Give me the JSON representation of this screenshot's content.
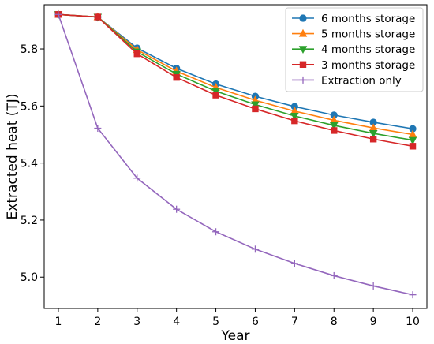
{
  "chart_data": {
    "type": "line",
    "title": "",
    "xlabel": "Year",
    "ylabel": "Extracted heat (TJ)",
    "x": [
      1,
      2,
      3,
      4,
      5,
      6,
      7,
      8,
      9,
      10
    ],
    "xlim": [
      0.64,
      10.36
    ],
    "ylim": [
      4.89,
      5.955
    ],
    "yticks": [
      "5.0",
      "5.2",
      "5.4",
      "5.6",
      "5.8"
    ],
    "grid": false,
    "legend_position": "top-right",
    "series": [
      {
        "name": "6 months storage",
        "color": "#1f77b4",
        "marker": "circle",
        "values": [
          5.921,
          5.912,
          5.803,
          5.732,
          5.677,
          5.634,
          5.598,
          5.568,
          5.543,
          5.52
        ]
      },
      {
        "name": "5 months storage",
        "color": "#ff7f0e",
        "marker": "triangle-up",
        "values": [
          5.921,
          5.912,
          5.797,
          5.722,
          5.665,
          5.62,
          5.582,
          5.55,
          5.523,
          5.5
        ]
      },
      {
        "name": "4 months storage",
        "color": "#2ca02c",
        "marker": "triangle-down",
        "values": [
          5.921,
          5.912,
          5.79,
          5.712,
          5.652,
          5.605,
          5.565,
          5.532,
          5.504,
          5.48
        ]
      },
      {
        "name": "3 months storage",
        "color": "#d62728",
        "marker": "square",
        "values": [
          5.921,
          5.912,
          5.783,
          5.7,
          5.638,
          5.59,
          5.548,
          5.514,
          5.484,
          5.459
        ]
      },
      {
        "name": "Extraction only",
        "color": "#9467bd",
        "marker": "plus",
        "values": [
          5.921,
          5.522,
          5.347,
          5.238,
          5.159,
          5.098,
          5.048,
          5.005,
          4.969,
          4.938
        ]
      }
    ]
  }
}
